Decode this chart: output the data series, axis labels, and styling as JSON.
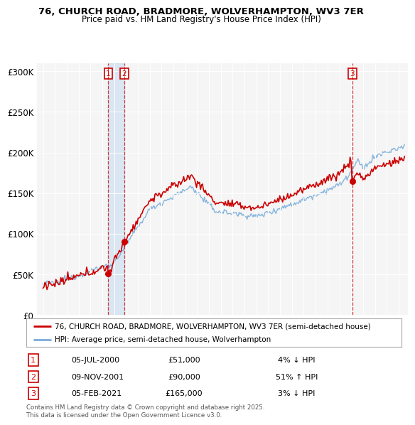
{
  "title": "76, CHURCH ROAD, BRADMORE, WOLVERHAMPTON, WV3 7ER",
  "subtitle": "Price paid vs. HM Land Registry's House Price Index (HPI)",
  "ylabel_ticks": [
    "£0",
    "£50K",
    "£100K",
    "£150K",
    "£200K",
    "£250K",
    "£300K"
  ],
  "ytick_values": [
    0,
    50000,
    100000,
    150000,
    200000,
    250000,
    300000
  ],
  "ylim": [
    0,
    310000
  ],
  "xlim_start": 1994.5,
  "xlim_end": 2025.8,
  "transactions": [
    {
      "label": "1",
      "date": "05-JUL-2000",
      "price": 51000,
      "pct": "4%",
      "dir": "↓",
      "year": 2000.51
    },
    {
      "label": "2",
      "date": "09-NOV-2001",
      "price": 90000,
      "pct": "51%",
      "dir": "↑",
      "year": 2001.86
    },
    {
      "label": "3",
      "date": "05-FEB-2021",
      "price": 165000,
      "pct": "3%",
      "dir": "↓",
      "year": 2021.1
    }
  ],
  "legend_line1": "76, CHURCH ROAD, BRADMORE, WOLVERHAMPTON, WV3 7ER (semi-detached house)",
  "legend_line2": "HPI: Average price, semi-detached house, Wolverhampton",
  "footer": "Contains HM Land Registry data © Crown copyright and database right 2025.\nThis data is licensed under the Open Government Licence v3.0.",
  "price_color": "#cc0000",
  "hpi_color": "#7aadda",
  "bg_color": "#ffffff",
  "plot_bg_color": "#f5f5f5"
}
